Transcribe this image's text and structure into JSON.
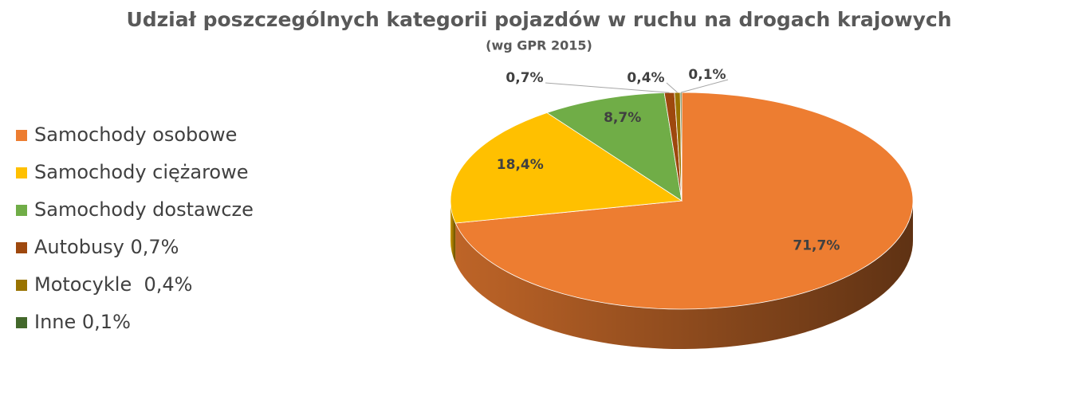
{
  "chart_data": {
    "type": "pie3d",
    "title": "Udział poszczególnych kategorii pojazdów w ruchu na drogach krajowych",
    "subtitle": "(wg GPR 2015)",
    "categories": [
      "Samochody osobowe",
      "Samochody ciężarowe",
      "Samochody dostawcze",
      "Autobusy 0,7%",
      "Motocykle  0,4%",
      "Inne 0,1%"
    ],
    "values": [
      71.7,
      18.4,
      8.7,
      0.7,
      0.4,
      0.1
    ],
    "value_labels": [
      "71,7%",
      "18,4%",
      "8,7%",
      "0,7%",
      "0,4%",
      "0,1%"
    ],
    "colors": [
      "#ED7D31",
      "#FFC000",
      "#70AD47",
      "#9E480E",
      "#997300",
      "#43682B"
    ],
    "legend": "left"
  }
}
